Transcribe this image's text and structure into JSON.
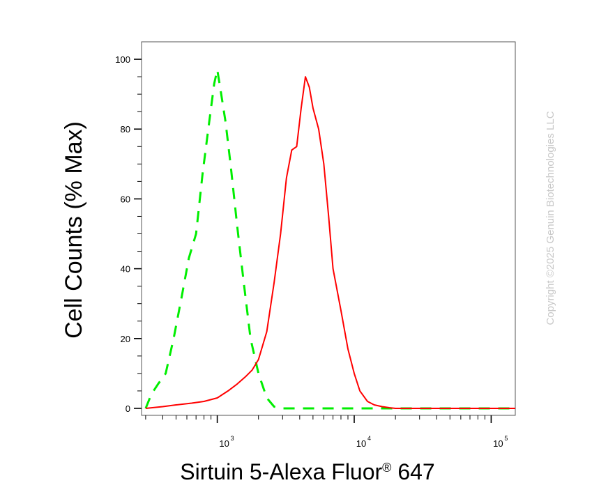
{
  "chart_data": {
    "type": "line",
    "title": "",
    "xlabel": "Sirtuin 5-Alexa Fluor",
    "xlabel_mark": "®",
    "xlabel_suffix": " 647",
    "ylabel": "Cell Counts (% Max)",
    "x_scale": "log",
    "xlim": [
      280,
      150000
    ],
    "ylim": [
      -2,
      105
    ],
    "y_ticks": [
      0,
      20,
      40,
      60,
      80,
      100
    ],
    "x_ticks": [
      {
        "value": 1000,
        "base": "10",
        "exp": "3"
      },
      {
        "value": 10000,
        "base": "10",
        "exp": "4"
      },
      {
        "value": 100000,
        "base": "10",
        "exp": "5"
      }
    ],
    "grid": false,
    "legend": "none",
    "series": [
      {
        "color": "#00ee00",
        "style": "dashed",
        "x": [
          300,
          330,
          370,
          420,
          480,
          550,
          620,
          700,
          780,
          860,
          950,
          1000,
          1050,
          1150,
          1250,
          1400,
          1550,
          1750,
          2000,
          2300,
          2600,
          2900,
          4000,
          10000,
          150000
        ],
        "y": [
          0,
          4,
          7,
          10,
          20,
          32,
          43,
          50,
          67,
          80,
          93,
          97,
          92,
          82,
          70,
          52,
          37,
          20,
          10,
          3,
          0.5,
          0,
          0,
          0,
          0
        ]
      },
      {
        "color": "#ff0000",
        "style": "solid",
        "x": [
          300,
          400,
          500,
          650,
          800,
          1000,
          1200,
          1400,
          1600,
          1800,
          2000,
          2300,
          2600,
          2900,
          3200,
          3500,
          3800,
          4100,
          4400,
          4700,
          5000,
          5500,
          6000,
          6500,
          7000,
          8000,
          9000,
          10000,
          11000,
          12500,
          14000,
          16000,
          18000,
          20000,
          30000,
          150000
        ],
        "y": [
          0,
          0.5,
          1,
          1.5,
          2,
          3,
          5,
          7,
          9,
          11,
          14,
          22,
          36,
          50,
          66,
          74,
          75,
          86,
          95,
          92,
          86,
          80,
          70,
          55,
          40,
          28,
          17,
          10,
          5,
          2,
          1,
          0.5,
          0.2,
          0,
          0,
          0
        ]
      }
    ]
  },
  "watermark": {
    "text": "Copyright ©2025 Genuin Biotechnologies LLC"
  }
}
